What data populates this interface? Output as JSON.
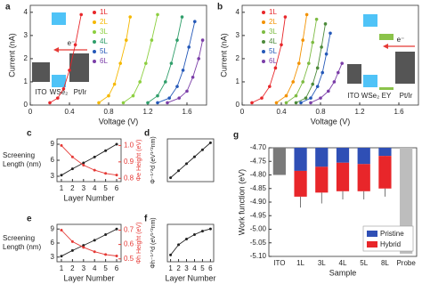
{
  "chart_data": [
    {
      "type": "line",
      "panel": "a",
      "xlabel": "Voltage (V)",
      "ylabel": "Current (nA)",
      "xlim": [
        0,
        1.8
      ],
      "xticks": [
        0,
        0.4,
        0.8,
        1.2,
        1.6
      ],
      "ylim": [
        0,
        4.3
      ],
      "yticks": [
        0,
        1,
        2,
        3,
        4
      ],
      "inset_labels": [
        "ITO",
        "WSe₂",
        "Pt/Ir",
        "e⁻"
      ],
      "series": [
        {
          "name": "1L",
          "color": "#e8262a",
          "x": [
            0.2,
            0.28,
            0.34,
            0.4,
            0.46,
            0.52
          ],
          "values": [
            0.1,
            0.3,
            0.7,
            1.5,
            2.6,
            3.9
          ]
        },
        {
          "name": "2L",
          "color": "#f5b800",
          "x": [
            0.7,
            0.8,
            0.86,
            0.92,
            0.98,
            1.02
          ],
          "values": [
            0.1,
            0.4,
            0.9,
            1.8,
            2.8,
            3.8
          ]
        },
        {
          "name": "3L",
          "color": "#8ccf3f",
          "x": [
            0.95,
            1.05,
            1.12,
            1.18,
            1.24,
            1.3
          ],
          "values": [
            0.1,
            0.4,
            1.0,
            1.8,
            2.8,
            3.9
          ]
        },
        {
          "name": "4L",
          "color": "#2f9e6a",
          "x": [
            1.2,
            1.3,
            1.38,
            1.44,
            1.5,
            1.55
          ],
          "values": [
            0.1,
            0.4,
            1.0,
            1.8,
            2.8,
            3.8
          ]
        },
        {
          "name": "5L",
          "color": "#2458b8",
          "x": [
            1.3,
            1.42,
            1.5,
            1.56,
            1.62,
            1.68
          ],
          "values": [
            0.1,
            0.3,
            0.8,
            1.5,
            2.5,
            3.6
          ]
        },
        {
          "name": "6L",
          "color": "#7b3ea8",
          "x": [
            1.4,
            1.52,
            1.6,
            1.66,
            1.72,
            1.76
          ],
          "values": [
            0.1,
            0.3,
            0.6,
            1.2,
            2.0,
            2.8
          ]
        }
      ]
    },
    {
      "type": "line",
      "panel": "b",
      "xlabel": "Voltage (V)",
      "ylabel": "Current (nA)",
      "xlim": [
        0,
        1.8
      ],
      "xticks": [
        0,
        0.4,
        0.8,
        1.2,
        1.6
      ],
      "ylim": [
        0,
        4.3
      ],
      "yticks": [
        0,
        1,
        2,
        3,
        4
      ],
      "inset_labels": [
        "ITO",
        "WSe₂",
        "EY",
        "Pt/Ir",
        "e⁻"
      ],
      "series": [
        {
          "name": "1L",
          "color": "#e8262a",
          "x": [
            0.1,
            0.2,
            0.28,
            0.34,
            0.4,
            0.44
          ],
          "values": [
            0.1,
            0.3,
            0.8,
            1.6,
            2.6,
            3.8
          ]
        },
        {
          "name": "2L",
          "color": "#f39200",
          "x": [
            0.35,
            0.45,
            0.52,
            0.58,
            0.62,
            0.66
          ],
          "values": [
            0.1,
            0.4,
            1.0,
            1.8,
            2.8,
            3.9
          ]
        },
        {
          "name": "3L",
          "color": "#7dbb42",
          "x": [
            0.45,
            0.55,
            0.62,
            0.68,
            0.72,
            0.76
          ],
          "values": [
            0.1,
            0.4,
            1.0,
            1.8,
            2.7,
            3.7
          ]
        },
        {
          "name": "4L",
          "color": "#4c8a3a",
          "x": [
            0.55,
            0.65,
            0.72,
            0.77,
            0.81,
            0.85
          ],
          "values": [
            0.1,
            0.3,
            0.9,
            1.6,
            2.5,
            3.5
          ]
        },
        {
          "name": "5L",
          "color": "#2458b8",
          "x": [
            0.6,
            0.7,
            0.77,
            0.82,
            0.86,
            0.9
          ],
          "values": [
            0.1,
            0.3,
            0.8,
            1.4,
            2.2,
            3.1
          ]
        },
        {
          "name": "6L",
          "color": "#7b3ea8",
          "x": [
            0.7,
            0.8,
            0.88,
            0.94,
            0.98,
            1.02
          ],
          "values": [
            0.1,
            0.3,
            0.6,
            1.0,
            1.4,
            1.8
          ]
        }
      ]
    },
    {
      "type": "line",
      "panel": "c",
      "xlabel": "Layer Number",
      "ylabel": [
        "Screening",
        "Length (nm)"
      ],
      "y2label": "Φe Height (eV)",
      "x": [
        1,
        2,
        3,
        4,
        5,
        6
      ],
      "xlim": [
        0.6,
        6.4
      ],
      "xticks": [
        1,
        2,
        3,
        4,
        5,
        6
      ],
      "ylim": [
        2,
        10
      ],
      "yticks": [
        3,
        6,
        9
      ],
      "y2lim": [
        0.78,
        1.04
      ],
      "y2ticks": [
        0.8,
        0.9,
        {
          "value": 1,
          "label": "1.0"
        }
      ],
      "series": [
        {
          "color": "#222222",
          "values": [
            3.2,
            4.4,
            5.5,
            6.6,
            7.8,
            9.0
          ]
        },
        {
          "color": "#e53935",
          "axis": "y2",
          "values": [
            1.0,
            0.93,
            0.88,
            0.85,
            0.83,
            0.82
          ]
        }
      ]
    },
    {
      "type": "line",
      "panel": "d",
      "ylabel": "Φ⁻¹ᐟ²d (eV¹ᐟ²nm)",
      "x": [
        1,
        2,
        3,
        4,
        5,
        6
      ],
      "xlim": [
        0.6,
        6.4
      ],
      "ylim": [
        1,
        6.5
      ],
      "series": [
        {
          "color": "#222222",
          "values": [
            1.5,
            2.4,
            3.3,
            4.2,
            5.1,
            6.0
          ]
        }
      ]
    },
    {
      "type": "line",
      "panel": "e",
      "xlabel": "Layer Number",
      "ylabel": [
        "Screening",
        "Length (nm)"
      ],
      "y2label": "Φh Height (eV)",
      "x": [
        1,
        2,
        3,
        4,
        5,
        6
      ],
      "xlim": [
        0.6,
        6.4
      ],
      "xticks": [
        1,
        2,
        3,
        4,
        5,
        6
      ],
      "ylim": [
        2,
        10
      ],
      "yticks": [
        3,
        6,
        9
      ],
      "y2lim": [
        0.48,
        0.74
      ],
      "y2ticks": [
        0.5,
        0.6,
        0.7
      ],
      "series": [
        {
          "color": "#222222",
          "values": [
            3.2,
            4.4,
            5.5,
            6.6,
            7.8,
            9.0
          ]
        },
        {
          "color": "#e53935",
          "axis": "y2",
          "values": [
            0.7,
            0.62,
            0.58,
            0.55,
            0.53,
            0.52
          ]
        }
      ]
    },
    {
      "type": "line",
      "panel": "f",
      "xlabel": "Layer Number",
      "ylabel": "Φh⁻¹ᐟ²d (eV¹ᐟ²nm)",
      "x": [
        1,
        2,
        3,
        4,
        5,
        6
      ],
      "xlim": [
        0.6,
        6.4
      ],
      "xticks": [
        1,
        2,
        3,
        4,
        5,
        6
      ],
      "ylim": [
        1,
        4.3
      ],
      "series": [
        {
          "color": "#222222",
          "values": [
            1.6,
            2.5,
            3.0,
            3.4,
            3.7,
            3.9
          ]
        }
      ]
    },
    {
      "type": "bar",
      "panel": "g",
      "xlabel": "Sample",
      "ylabel": "Work function (eV)",
      "categories": [
        "ITO",
        "1L",
        "3L",
        "4L",
        "5L",
        "8L",
        "Probe"
      ],
      "ylim": [
        -5.1,
        -4.7
      ],
      "yticks": [
        {
          "value": -4.7,
          "label": "-4.70"
        },
        {
          "value": -4.75,
          "label": "-4.75"
        },
        {
          "value": -4.8,
          "label": "-4.80"
        },
        {
          "value": -4.85,
          "label": "-4.85"
        },
        {
          "value": -4.9,
          "label": "-4.90"
        },
        {
          "value": -4.95,
          "label": "-4.95"
        },
        {
          "value": -5,
          "label": "-5.00"
        },
        {
          "value": -5.05,
          "label": "-5.05"
        },
        {
          "value": -5.1,
          "label": "-5.10"
        }
      ],
      "reference_values": [
        -4.8,
        null,
        null,
        null,
        null,
        null,
        -5.09
      ],
      "reference_colors": [
        "#7a7a7a",
        null,
        null,
        null,
        null,
        null,
        "#bdbdbd"
      ],
      "legend": "lower right",
      "series": [
        {
          "name": "Pristine",
          "color": "#2f4fb5",
          "values": [
            null,
            -4.785,
            -4.77,
            -4.755,
            -4.76,
            -4.73,
            null
          ],
          "errors": [
            null,
            0.005,
            0.005,
            0.005,
            0.005,
            0.005,
            null
          ]
        },
        {
          "name": "Hybrid",
          "color": "#e8262a",
          "values": [
            null,
            -4.88,
            -4.865,
            -4.86,
            -4.86,
            -4.85,
            null
          ],
          "errors": [
            null,
            0.04,
            0.04,
            0.03,
            0.03,
            0.03,
            null
          ]
        }
      ]
    }
  ]
}
